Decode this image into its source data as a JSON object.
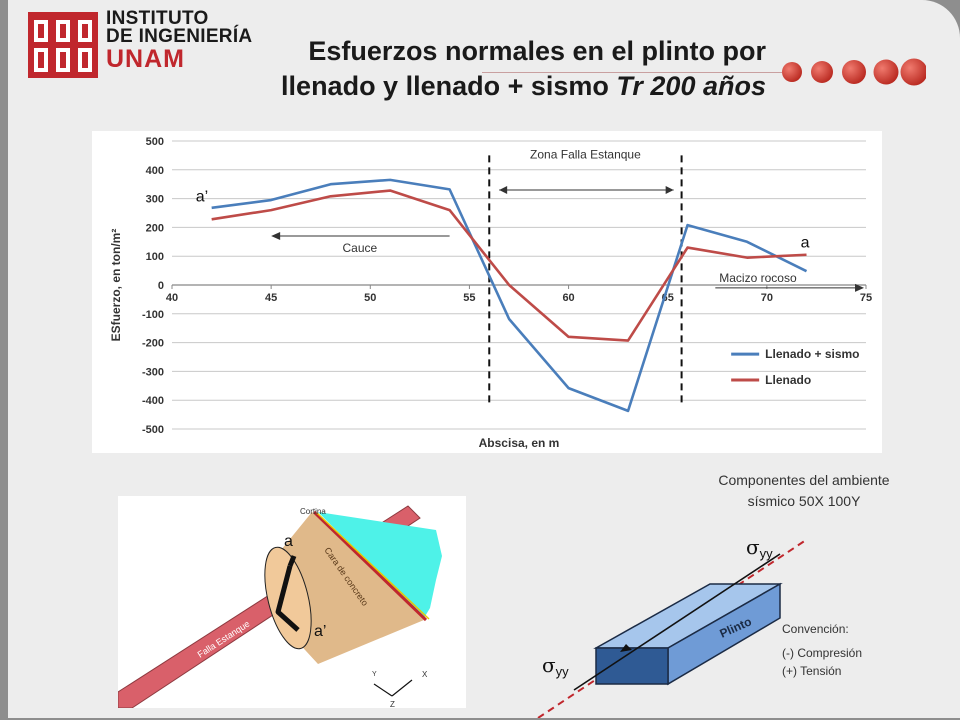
{
  "header": {
    "logo_line1": "INSTITUTO",
    "logo_line2": "DE INGENIERÍA",
    "logo_line3": "UNAM",
    "title_line1": "Esfuerzos normales en el plinto por",
    "title_line2_plain": "llenado y llenado + sismo ",
    "title_line2_italic": "Tr 200 años"
  },
  "chart_data": {
    "type": "line",
    "xlabel": "Abscisa, en m",
    "ylabel": "ESfuerzo, en ton/m²",
    "xlim": [
      40,
      75
    ],
    "ylim": [
      -500,
      500
    ],
    "xticks": [
      40,
      45,
      50,
      55,
      60,
      65,
      70,
      75
    ],
    "yticks": [
      500,
      400,
      300,
      200,
      100,
      0,
      -100,
      -200,
      -300,
      -400,
      -500
    ],
    "grid": "horizontal",
    "legend_position": "bottom-right",
    "series": [
      {
        "name": "Llenado + sismo",
        "color": "#4a7ebb",
        "x": [
          42,
          45,
          48,
          51,
          54,
          57,
          60,
          63,
          66,
          69,
          72
        ],
        "y": [
          268,
          295,
          350,
          365,
          332,
          -118,
          -358,
          -437,
          208,
          150,
          48
        ]
      },
      {
        "name": "Llenado",
        "color": "#be4b48",
        "x": [
          42,
          45,
          48,
          51,
          54,
          57,
          60,
          63,
          66,
          69,
          72
        ],
        "y": [
          228,
          260,
          308,
          328,
          260,
          0,
          -180,
          -193,
          130,
          95,
          105
        ]
      }
    ],
    "vlines": [
      56,
      65.7
    ],
    "annotations": {
      "zona": "Zona Falla Estanque",
      "cauce": "Cauce",
      "macizo": "Macizo rocoso",
      "a_prime": "a’",
      "a": "a"
    }
  },
  "diagram_left": {
    "cortina": "Cortina",
    "cara": "Cara de concreto",
    "falla": "Falla Estanque",
    "a": "a",
    "a_prime": "a’",
    "axis_x": "X",
    "axis_y": "Y",
    "axis_z": "Z"
  },
  "diagram_right": {
    "caption_line1": "Componentes del ambiente",
    "caption_line2": "sísmico 50X 100Y",
    "sigma": "σ",
    "yy": "yy",
    "plinto": "Plinto",
    "convencion": "Convención:",
    "compresion": "(-) Compresión",
    "tension": "(+) Tensión"
  },
  "colors": {
    "brand_red": "#c0272d",
    "sismo_blue": "#4a7ebb",
    "llenado_red": "#be4b48",
    "concrete": "#e0b98a",
    "water": "#4ef2e8",
    "plinto_blue": "#8db3e2"
  }
}
